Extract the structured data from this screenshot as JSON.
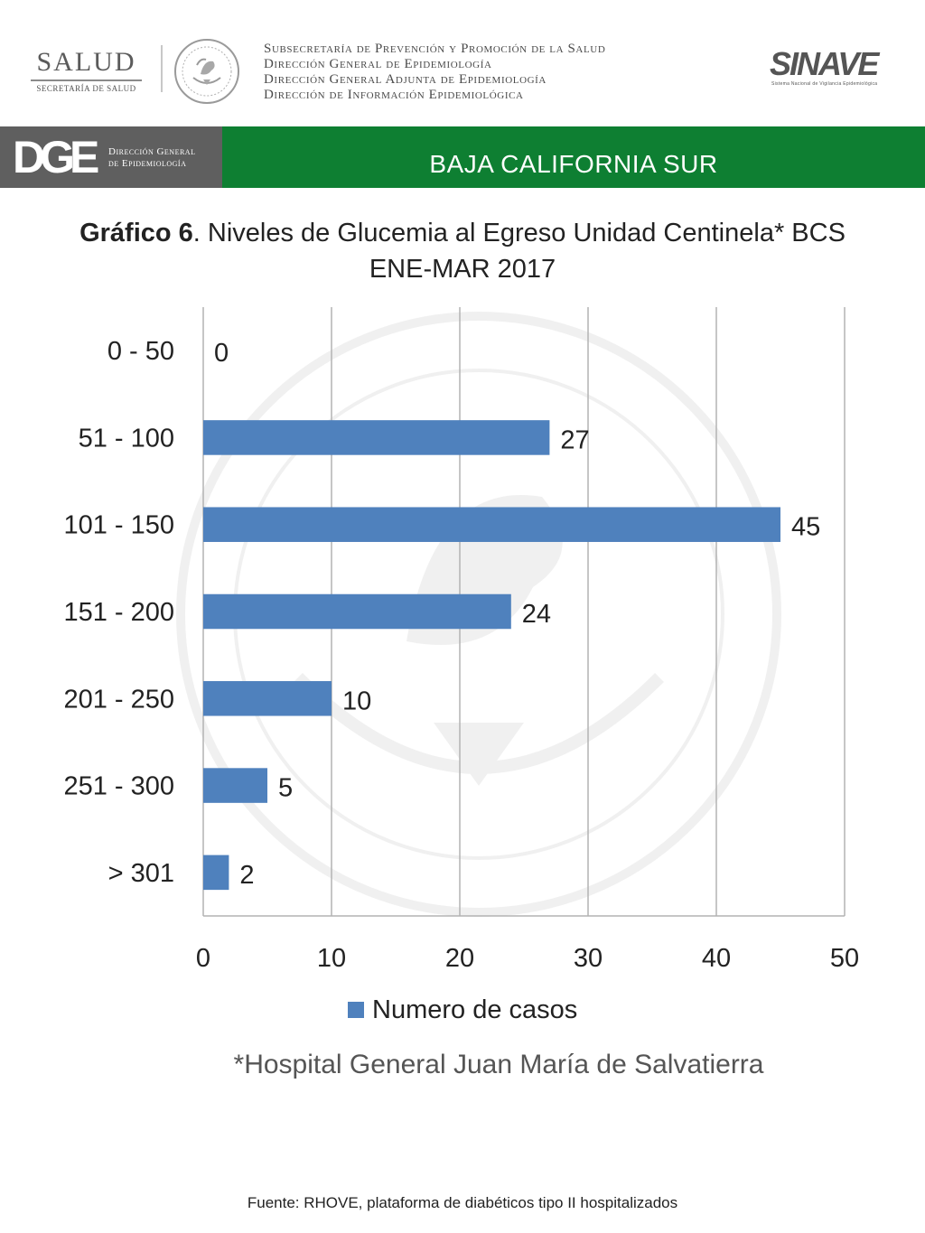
{
  "header": {
    "salud_logo": {
      "name": "SALUD",
      "subtitle": "SECRETARÍA DE SALUD"
    },
    "seal_icon": "mexico-national-seal-icon",
    "org_lines": [
      "Subsecretaría de Prevención y Promoción de la Salud",
      "Dirección General de Epidemiología",
      "Dirección General Adjunta de Epidemiología",
      "Dirección de Información Epidemiológica"
    ],
    "sinave_logo": {
      "name": "SINAVE",
      "subtitle": "Sistema Nacional de Vigilancia Epidemiológica"
    }
  },
  "band": {
    "dge_logo": {
      "mark": "DGE",
      "line1": "Dirección General",
      "line2": "de Epidemiología"
    },
    "state": "BAJA CALIFORNIA SUR",
    "gray_color": "#5f5f5f",
    "green_color": "#0e7f32"
  },
  "chart_data": {
    "type": "bar",
    "orientation": "horizontal",
    "title_bold": "Gráfico 6",
    "title_rest": ". Niveles de Glucemia al Egreso  Unidad Centinela* BCS",
    "title_line2": "ENE-MAR 2017",
    "categories": [
      "0 - 50",
      "51 - 100",
      "101 - 150",
      "151 - 200",
      "201 - 250",
      "251 - 300",
      "> 301"
    ],
    "series": [
      {
        "name": "Numero de casos",
        "values": [
          0,
          27,
          45,
          24,
          10,
          5,
          2
        ],
        "color": "#4f81bd"
      }
    ],
    "xlim": [
      0,
      50
    ],
    "xticks": [
      0,
      10,
      20,
      30,
      40,
      50
    ],
    "grid": "vertical",
    "data_labels": true,
    "legend_position": "bottom"
  },
  "note": "*Hospital General Juan María de Salvatierra",
  "source": "Fuente: RHOVE, plataforma de diabéticos tipo II hospitalizados"
}
